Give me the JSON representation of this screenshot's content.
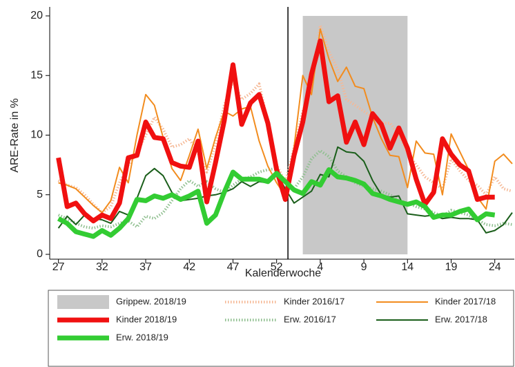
{
  "chart_data": {
    "type": "line",
    "y_label": "ARE-Rate in %",
    "x_label": "Kalenderwoche",
    "categories": [
      "27",
      null,
      null,
      null,
      null,
      "32",
      null,
      null,
      null,
      null,
      "37",
      null,
      null,
      null,
      null,
      "42",
      null,
      null,
      null,
      null,
      "47",
      null,
      null,
      null,
      null,
      "52",
      null,
      null,
      null,
      null,
      "4",
      null,
      null,
      null,
      null,
      "9",
      null,
      null,
      null,
      null,
      "14",
      null,
      null,
      null,
      null,
      "19",
      null,
      null,
      null,
      null,
      "24",
      null,
      null
    ],
    "ylim": [
      0,
      20
    ],
    "yticks": [
      0,
      5,
      10,
      15,
      20
    ],
    "shade": {
      "name": "Grippew. 2018/19",
      "from": 28,
      "to": 40,
      "color": "#c8c8c8"
    },
    "vline": 26.3,
    "series": [
      {
        "name": "Kinder 2016/17",
        "color": "#f5b895",
        "style": "dotted",
        "values": [
          6.2,
          5.8,
          5.6,
          5.0,
          4.2,
          3.5,
          4.0,
          6.0,
          7.5,
          8.5,
          10.0,
          11.5,
          10.5,
          9.0,
          9.2,
          9.7,
          8.5,
          6.9,
          9.2,
          12.5,
          14.5,
          13.0,
          13.5,
          14.3,
          11.0,
          7.5,
          6.0,
          9.0,
          12.0,
          14.0,
          19.2,
          17.0,
          15.5,
          13.0,
          12.5,
          12.0,
          11.5,
          11.0,
          11.0,
          10.0,
          8.5,
          7.5,
          6.5,
          6.0,
          5.5,
          8.0,
          7.0,
          6.2,
          5.8,
          5.0,
          6.5,
          5.5,
          5.3
        ]
      },
      {
        "name": "Kinder 2017/18",
        "color": "#f28c1e",
        "style": "thin",
        "values": [
          6.0,
          5.8,
          5.5,
          4.8,
          4.1,
          3.5,
          4.5,
          7.3,
          6.0,
          10.0,
          13.4,
          12.5,
          9.8,
          7.2,
          6.2,
          8.3,
          10.5,
          7.2,
          9.8,
          12.0,
          11.6,
          12.2,
          12.4,
          9.5,
          7.4,
          6.0,
          4.9,
          9.0,
          15.0,
          13.4,
          18.9,
          16.4,
          14.5,
          15.7,
          14.1,
          13.9,
          11.5,
          9.7,
          8.3,
          8.2,
          5.6,
          9.5,
          8.5,
          8.4,
          5.0,
          10.1,
          8.6,
          7.1,
          4.8,
          3.8,
          7.8,
          8.4,
          7.6
        ]
      },
      {
        "name": "Kinder 2018/19",
        "color": "#f01010",
        "style": "thick",
        "values": [
          8.1,
          4.0,
          4.3,
          3.4,
          2.8,
          3.3,
          3.0,
          4.3,
          8.1,
          8.3,
          11.1,
          9.8,
          9.7,
          7.7,
          7.4,
          7.3,
          9.5,
          4.4,
          7.7,
          11.2,
          15.9,
          10.9,
          12.7,
          13.4,
          11.0,
          7.1,
          4.6,
          8.3,
          11.1,
          15.1,
          17.9,
          12.8,
          13.3,
          9.4,
          11.1,
          9.2,
          11.8,
          10.9,
          8.9,
          10.6,
          8.9,
          6.3,
          4.2,
          5.2,
          9.7,
          8.4,
          7.5,
          7.0,
          4.6,
          4.8,
          4.8,
          null,
          null
        ]
      },
      {
        "name": "Erw. 2016/17",
        "color": "#8fbf8f",
        "style": "dotted",
        "values": [
          3.3,
          3.0,
          2.6,
          2.3,
          2.2,
          2.4,
          2.3,
          2.6,
          2.8,
          2.3,
          3.2,
          3.0,
          3.5,
          4.5,
          5.5,
          6.2,
          5.7,
          6.1,
          5.5,
          5.2,
          5.8,
          6.3,
          6.5,
          6.9,
          7.1,
          7.2,
          6.0,
          5.5,
          6.5,
          8.0,
          8.7,
          8.2,
          7.0,
          6.5,
          6.0,
          5.7,
          5.5,
          5.3,
          5.0,
          4.5,
          4.3,
          4.0,
          3.8,
          3.5,
          3.2,
          3.7,
          3.5,
          3.3,
          2.9,
          2.5,
          2.4,
          2.6,
          2.5
        ]
      },
      {
        "name": "Erw. 2017/18",
        "color": "#1a5e1a",
        "style": "thin",
        "values": [
          2.2,
          3.2,
          2.5,
          3.3,
          3.0,
          2.9,
          2.6,
          3.6,
          3.3,
          4.7,
          6.6,
          7.2,
          6.6,
          5.2,
          4.5,
          4.6,
          4.7,
          4.9,
          5.0,
          5.2,
          5.5,
          6.1,
          5.7,
          6.1,
          6.0,
          6.8,
          5.5,
          4.3,
          4.8,
          5.3,
          6.7,
          6.5,
          9.0,
          8.6,
          8.5,
          7.8,
          6.2,
          5.0,
          4.8,
          4.9,
          3.4,
          3.3,
          3.2,
          3.3,
          3.0,
          3.1,
          3.0,
          3.0,
          2.9,
          1.8,
          2.0,
          2.5,
          3.5
        ]
      },
      {
        "name": "Erw. 2018/19",
        "color": "#33cc33",
        "style": "thick",
        "values": [
          3.0,
          2.6,
          1.9,
          1.7,
          1.5,
          2.0,
          1.6,
          2.2,
          3.0,
          4.6,
          4.5,
          4.9,
          4.7,
          5.0,
          4.6,
          4.9,
          5.3,
          2.6,
          3.3,
          5.2,
          6.9,
          6.3,
          6.3,
          6.3,
          6.1,
          6.8,
          6.1,
          5.4,
          5.1,
          6.1,
          5.8,
          7.1,
          6.5,
          6.4,
          6.2,
          5.9,
          5.1,
          4.9,
          4.6,
          4.4,
          4.2,
          4.4,
          4.0,
          3.1,
          3.3,
          3.3,
          3.6,
          3.8,
          2.9,
          3.4,
          3.3,
          null,
          null
        ]
      }
    ]
  }
}
